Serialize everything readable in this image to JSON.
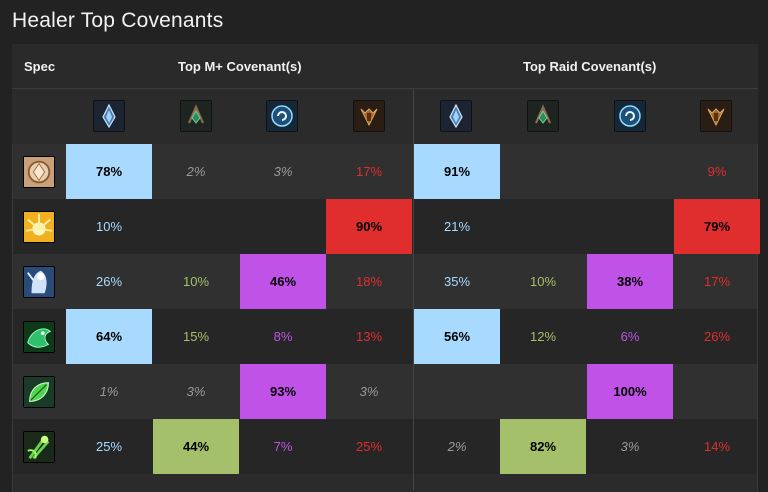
{
  "title": "Healer Top Covenants",
  "header": {
    "spec": "Spec",
    "mplus": "Top M+ Covenant(s)",
    "raid": "Top Raid Covenant(s)"
  },
  "covenant_icons": [
    "kyrian-icon",
    "necrolord-icon",
    "night-fae-icon",
    "venthyr-icon"
  ],
  "colors": {
    "kyrian": "#a8daff",
    "necrolord": "#a4c06a",
    "night_fae": "#c152e8",
    "venthyr": "#e02e2e",
    "faint": "#9a9a9a"
  },
  "rows": [
    {
      "spec_icon": "holy-paladin-icon",
      "mplus": [
        "78%",
        "2%",
        "3%",
        "17%"
      ],
      "raid": [
        "91%",
        "",
        "",
        "9%"
      ]
    },
    {
      "spec_icon": "holy-priest-icon",
      "mplus": [
        "10%",
        "",
        "",
        "90%"
      ],
      "raid": [
        "21%",
        "",
        "",
        "79%"
      ]
    },
    {
      "spec_icon": "discipline-priest-icon",
      "mplus": [
        "26%",
        "10%",
        "46%",
        "18%"
      ],
      "raid": [
        "35%",
        "10%",
        "38%",
        "17%"
      ]
    },
    {
      "spec_icon": "mistweaver-monk-icon",
      "mplus": [
        "64%",
        "15%",
        "8%",
        "13%"
      ],
      "raid": [
        "56%",
        "12%",
        "6%",
        "26%"
      ]
    },
    {
      "spec_icon": "restoration-druid-icon",
      "mplus": [
        "1%",
        "3%",
        "93%",
        "3%"
      ],
      "raid": [
        "",
        "",
        "100%",
        ""
      ]
    },
    {
      "spec_icon": "restoration-shaman-icon",
      "mplus": [
        "25%",
        "44%",
        "7%",
        "25%"
      ],
      "raid": [
        "2%",
        "82%",
        "3%",
        "14%"
      ]
    }
  ]
}
